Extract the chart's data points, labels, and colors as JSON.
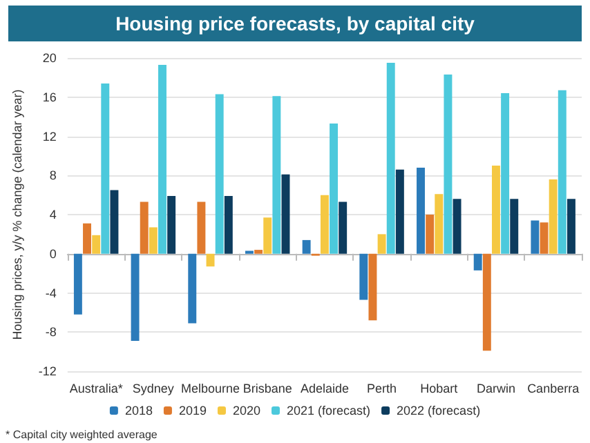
{
  "chart_data": {
    "type": "bar",
    "title": "Housing price forecasts, by capital city",
    "ylabel": "Housing prices, y/y % change (calendar year)",
    "categories": [
      "Australia*",
      "Sydney",
      "Melbourne",
      "Brisbane",
      "Adelaide",
      "Perth",
      "Hobart",
      "Darwin",
      "Canberra"
    ],
    "series": [
      {
        "name": "2018",
        "color": "#2b7bba",
        "values": [
          -6.2,
          -8.9,
          -7.1,
          0.3,
          1.4,
          -4.7,
          8.8,
          -1.7,
          3.4
        ]
      },
      {
        "name": "2019",
        "color": "#e07a2e",
        "values": [
          3.1,
          5.3,
          5.3,
          0.4,
          -0.2,
          -6.8,
          4.0,
          -9.9,
          3.2
        ]
      },
      {
        "name": "2020",
        "color": "#f5c842",
        "values": [
          1.9,
          2.7,
          -1.3,
          3.7,
          6.0,
          2.0,
          6.1,
          9.0,
          7.6
        ]
      },
      {
        "name": "2021 (forecast)",
        "color": "#4cc9dc",
        "values": [
          17.4,
          19.3,
          16.3,
          16.1,
          13.3,
          19.5,
          18.3,
          16.4,
          16.7
        ]
      },
      {
        "name": "2022 (forecast)",
        "color": "#0d3c5e",
        "values": [
          6.5,
          5.9,
          5.9,
          8.1,
          5.3,
          8.6,
          5.6,
          5.6,
          5.6
        ]
      }
    ],
    "ylim": [
      -12,
      20
    ],
    "yticks": [
      -12,
      -8,
      -4,
      0,
      4,
      8,
      12,
      16,
      20
    ],
    "grid": "y",
    "legend": "bottom",
    "annotations": [
      "* Capital city weighted average"
    ]
  }
}
